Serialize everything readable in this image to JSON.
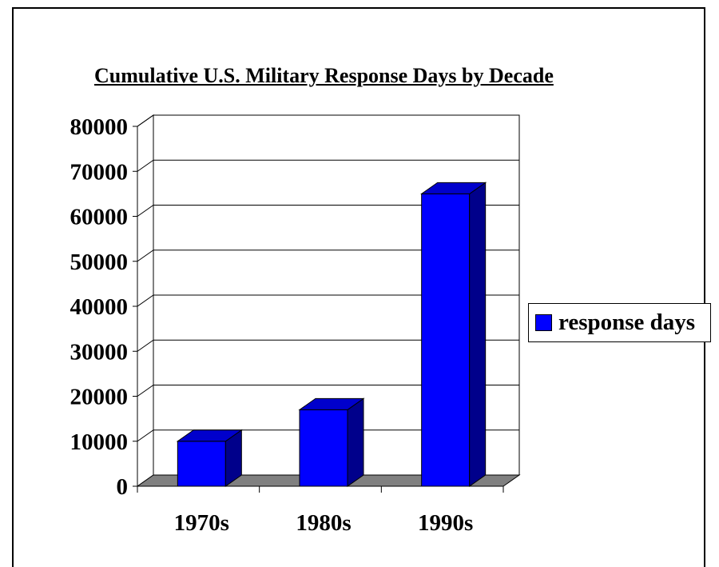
{
  "colors": {
    "bar_front": "#0000ff",
    "bar_side": "#00008b",
    "bar_top": "#0000cc",
    "floor": "#808080"
  },
  "chart_data": {
    "type": "bar",
    "title": "Cumulative U.S. Military Response Days by Decade",
    "xlabel": "",
    "ylabel": "",
    "categories": [
      "1970s",
      "1980s",
      "1990s"
    ],
    "series": [
      {
        "name": "response days",
        "values": [
          10000,
          17000,
          65000
        ]
      }
    ],
    "ylim": [
      0,
      80000
    ],
    "yticks": [
      "0",
      "10000",
      "20000",
      "30000",
      "40000",
      "50000",
      "60000",
      "70000",
      "80000"
    ],
    "grid": true,
    "legend_position": "right",
    "style": "3d-column"
  }
}
